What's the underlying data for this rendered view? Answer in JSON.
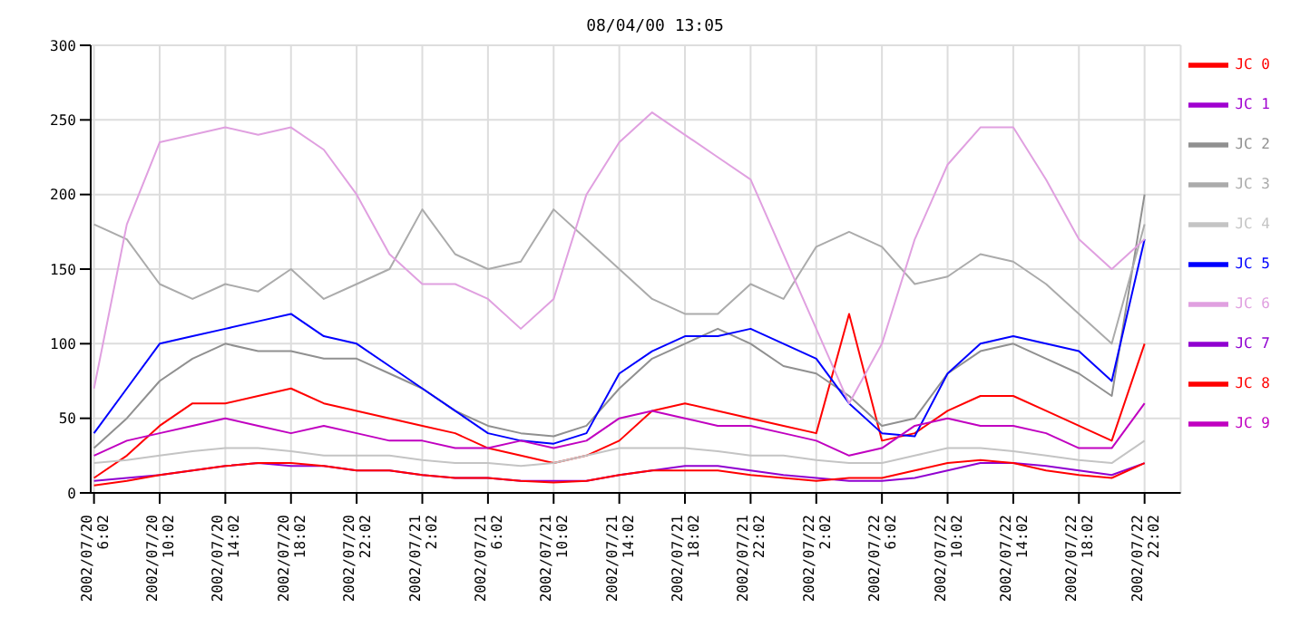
{
  "chart_data": {
    "type": "line",
    "title": "08/04/00 13:05",
    "x": [
      "2002-07-20T06:02",
      "2002-07-20T08:02",
      "2002-07-20T10:02",
      "2002-07-20T12:02",
      "2002-07-20T14:02",
      "2002-07-20T16:02",
      "2002-07-20T18:02",
      "2002-07-20T20:02",
      "2002-07-20T22:02",
      "2002-07-21T00:02",
      "2002-07-21T02:02",
      "2002-07-21T04:02",
      "2002-07-21T06:02",
      "2002-07-21T08:02",
      "2002-07-21T10:02",
      "2002-07-21T12:02",
      "2002-07-21T14:02",
      "2002-07-21T16:02",
      "2002-07-21T18:02",
      "2002-07-21T20:02",
      "2002-07-21T22:02",
      "2002-07-22T00:02",
      "2002-07-22T02:02",
      "2002-07-22T04:02",
      "2002-07-22T06:02",
      "2002-07-22T08:02",
      "2002-07-22T10:02",
      "2002-07-22T12:02",
      "2002-07-22T14:02",
      "2002-07-22T16:02",
      "2002-07-22T18:02",
      "2002-07-22T20:02",
      "2002-07-22T22:02"
    ],
    "series": [
      {
        "name": "JC 0",
        "color": "#ff0000",
        "values": [
          10,
          25,
          45,
          60,
          60,
          65,
          70,
          60,
          55,
          50,
          45,
          40,
          30,
          25,
          20,
          25,
          35,
          55,
          60,
          55,
          50,
          45,
          40,
          120,
          35,
          40,
          55,
          65,
          65,
          55,
          45,
          35,
          100
        ]
      },
      {
        "name": "JC 1",
        "color": "#a000d0",
        "values": [
          null,
          null,
          null,
          null,
          null,
          null,
          null,
          null,
          null,
          null,
          null,
          null,
          null,
          null,
          null,
          null,
          null,
          null,
          null,
          null,
          null,
          null,
          null,
          null,
          null,
          null,
          null,
          null,
          null,
          null,
          null,
          null,
          null
        ]
      },
      {
        "name": "JC 2",
        "color": "#909090",
        "values": [
          30,
          50,
          75,
          90,
          100,
          95,
          95,
          90,
          90,
          80,
          70,
          55,
          45,
          40,
          38,
          45,
          70,
          90,
          100,
          110,
          100,
          85,
          80,
          65,
          45,
          50,
          80,
          95,
          100,
          90,
          80,
          65,
          200
        ]
      },
      {
        "name": "JC 3",
        "color": "#ababab",
        "values": [
          180,
          170,
          140,
          130,
          140,
          135,
          150,
          130,
          140,
          150,
          190,
          160,
          150,
          155,
          190,
          170,
          150,
          130,
          120,
          120,
          140,
          130,
          165,
          175,
          165,
          140,
          145,
          160,
          155,
          140,
          120,
          100,
          180
        ]
      },
      {
        "name": "JC 4",
        "color": "#c4c4c4",
        "values": [
          20,
          22,
          25,
          28,
          30,
          30,
          28,
          25,
          25,
          25,
          22,
          20,
          20,
          18,
          20,
          25,
          30,
          30,
          30,
          28,
          25,
          25,
          22,
          20,
          20,
          25,
          30,
          30,
          28,
          25,
          22,
          20,
          35
        ]
      },
      {
        "name": "JC 5",
        "color": "#0000ff",
        "values": [
          40,
          70,
          100,
          105,
          110,
          115,
          120,
          105,
          100,
          85,
          70,
          55,
          40,
          35,
          33,
          40,
          80,
          95,
          105,
          105,
          110,
          100,
          90,
          60,
          40,
          38,
          80,
          100,
          105,
          100,
          95,
          75,
          170
        ]
      },
      {
        "name": "JC 6",
        "color": "#e0a0e0",
        "values": [
          70,
          180,
          235,
          240,
          245,
          240,
          245,
          230,
          200,
          160,
          140,
          140,
          130,
          110,
          130,
          200,
          235,
          255,
          240,
          225,
          210,
          160,
          110,
          60,
          100,
          170,
          220,
          245,
          245,
          210,
          170,
          150,
          170
        ]
      },
      {
        "name": "JC 7",
        "color": "#9000d0",
        "values": [
          8,
          10,
          12,
          15,
          18,
          20,
          18,
          18,
          15,
          15,
          12,
          10,
          10,
          8,
          8,
          8,
          12,
          15,
          18,
          18,
          15,
          12,
          10,
          8,
          8,
          10,
          15,
          20,
          20,
          18,
          15,
          12,
          20
        ]
      },
      {
        "name": "JC 8",
        "color": "#ff0000",
        "values": [
          5,
          8,
          12,
          15,
          18,
          20,
          20,
          18,
          15,
          15,
          12,
          10,
          10,
          8,
          7,
          8,
          12,
          15,
          15,
          15,
          12,
          10,
          8,
          10,
          10,
          15,
          20,
          22,
          20,
          15,
          12,
          10,
          20
        ]
      },
      {
        "name": "JC 9",
        "color": "#c000c0",
        "values": [
          25,
          35,
          40,
          45,
          50,
          45,
          40,
          45,
          40,
          35,
          35,
          30,
          30,
          35,
          30,
          35,
          50,
          55,
          50,
          45,
          45,
          40,
          35,
          25,
          30,
          45,
          50,
          45,
          45,
          40,
          30,
          30,
          60
        ]
      }
    ],
    "xlim": [
      "2002-07-20T05:50",
      "2002-07-23T00:14"
    ],
    "xticks": [
      {
        "value": "2002-07-20T06:02",
        "label": "2002/07/20\n6:02"
      },
      {
        "value": "2002-07-20T10:02",
        "label": "2002/07/20\n10:02"
      },
      {
        "value": "2002-07-20T14:02",
        "label": "2002/07/20\n14:02"
      },
      {
        "value": "2002-07-20T18:02",
        "label": "2002/07/20\n18:02"
      },
      {
        "value": "2002-07-20T22:02",
        "label": "2002/07/20\n22:02"
      },
      {
        "value": "2002-07-21T02:02",
        "label": "2002/07/21\n2:02"
      },
      {
        "value": "2002-07-21T06:02",
        "label": "2002/07/21\n6:02"
      },
      {
        "value": "2002-07-21T10:02",
        "label": "2002/07/21\n10:02"
      },
      {
        "value": "2002-07-21T14:02",
        "label": "2002/07/21\n14:02"
      },
      {
        "value": "2002-07-21T18:02",
        "label": "2002/07/21\n18:02"
      },
      {
        "value": "2002-07-21T22:02",
        "label": "2002/07/21\n22:02"
      },
      {
        "value": "2002-07-22T02:02",
        "label": "2002/07/22\n2:02"
      },
      {
        "value": "2002-07-22T06:02",
        "label": "2002/07/22\n6:02"
      },
      {
        "value": "2002-07-22T10:02",
        "label": "2002/07/22\n10:02"
      },
      {
        "value": "2002-07-22T14:02",
        "label": "2002/07/22\n14:02"
      },
      {
        "value": "2002-07-22T18:02",
        "label": "2002/07/22\n18:02"
      },
      {
        "value": "2002-07-22T22:02",
        "label": "2002/07/22\n22:02"
      }
    ],
    "ylim": [
      0,
      300
    ],
    "yticks": [
      0,
      50,
      100,
      150,
      200,
      250,
      300
    ],
    "grid": true,
    "legend": "top right",
    "marker": "none",
    "line_style": "solid"
  }
}
